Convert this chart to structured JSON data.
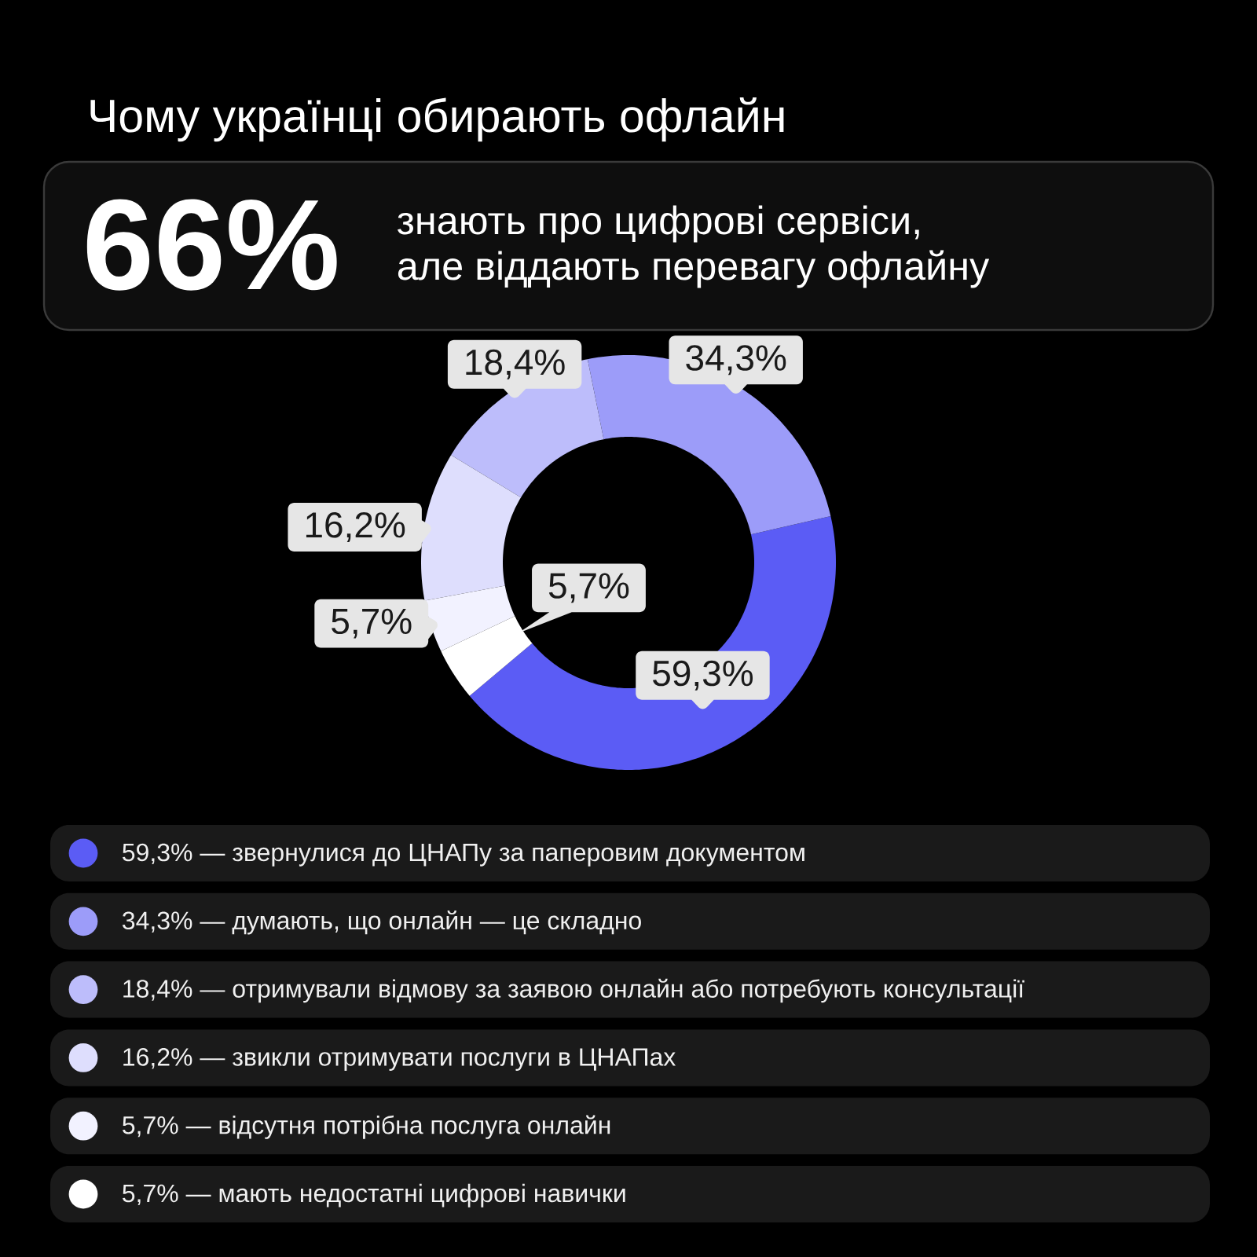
{
  "chart_data": {
    "type": "donut",
    "title": "Чому українці обирають офлайн",
    "annotations": [
      "66%",
      "знають про цифрові сервіси,",
      "але віддають перевагу офлайну"
    ],
    "categories": [
      "59,3% — звернулися до ЦНАПу за паперовим документом",
      "34,3% — думають, що онлайн — це складно",
      "18,4% — отримували відмову за заявою онлайн або потребують консультації",
      "16,2% — звикли отримувати послуги в ЦНАПах",
      "5,7% — відсутня потрібна послуга онлайн",
      "5,7% — мають недостатні цифрові навички"
    ],
    "values": [
      59.3,
      34.3,
      18.4,
      16.2,
      5.7,
      5.7
    ],
    "colors": [
      "#5b5cf5",
      "#9c9cf9",
      "#bdbdfb",
      "#dedefd",
      "#f2f2ff",
      "#ffffff"
    ],
    "value_labels": [
      "59,3%",
      "34,3%",
      "18,4%",
      "16,2%",
      "5,7%",
      "5,7%"
    ],
    "legend": "bottom"
  }
}
